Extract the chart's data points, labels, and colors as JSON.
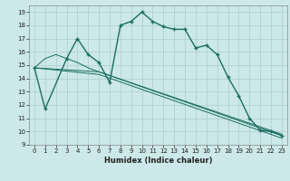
{
  "xlabel": "Humidex (Indice chaleur)",
  "xlim": [
    -0.5,
    23.5
  ],
  "ylim": [
    9,
    19.5
  ],
  "yticks": [
    9,
    10,
    11,
    12,
    13,
    14,
    15,
    16,
    17,
    18,
    19
  ],
  "xticks": [
    0,
    1,
    2,
    3,
    4,
    5,
    6,
    7,
    8,
    9,
    10,
    11,
    12,
    13,
    14,
    15,
    16,
    17,
    18,
    19,
    20,
    21,
    22,
    23
  ],
  "bg_color": "#cce8e8",
  "grid_color": "#aacece",
  "line_color": "#1a6e60",
  "series": [
    {
      "x": [
        0,
        1,
        3,
        4,
        5,
        6,
        7,
        8,
        9,
        10,
        11,
        12,
        13,
        14,
        15,
        16,
        17,
        18,
        19,
        20,
        21,
        22,
        23
      ],
      "y": [
        14.8,
        11.7,
        15.5,
        17.0,
        15.8,
        15.2,
        13.7,
        18.0,
        18.3,
        19.0,
        18.3,
        17.9,
        17.7,
        17.7,
        16.3,
        16.5,
        15.8,
        14.1,
        12.7,
        11.0,
        10.1,
        10.0,
        9.7
      ],
      "marker": "+",
      "linestyle": "-",
      "linewidth": 1.0
    },
    {
      "x": [
        0,
        1,
        2,
        3,
        4,
        5,
        6,
        23
      ],
      "y": [
        14.8,
        15.5,
        15.8,
        15.5,
        15.2,
        14.8,
        14.5,
        9.7
      ],
      "marker": null,
      "linestyle": "-",
      "linewidth": 0.7
    },
    {
      "x": [
        0,
        6,
        23
      ],
      "y": [
        14.8,
        14.5,
        9.8
      ],
      "marker": null,
      "linestyle": "-",
      "linewidth": 0.7
    },
    {
      "x": [
        0,
        6,
        23
      ],
      "y": [
        14.8,
        14.3,
        9.5
      ],
      "marker": null,
      "linestyle": "-",
      "linewidth": 0.7
    }
  ]
}
